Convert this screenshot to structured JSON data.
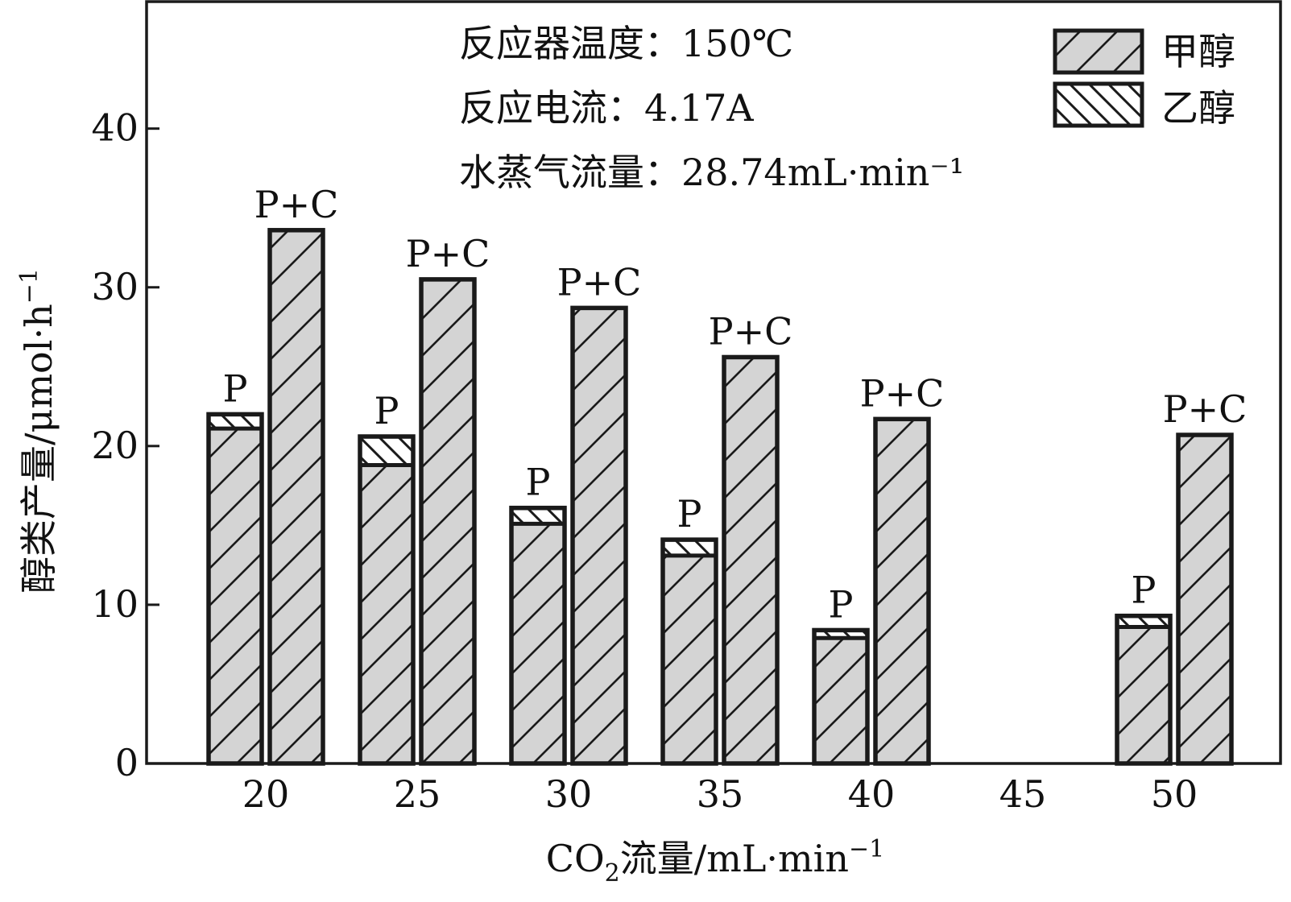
{
  "chart_data": {
    "type": "bar",
    "stacked": true,
    "xlabel": "CO₂流量/mL·min⁻¹",
    "xlabel_parts": {
      "pre": "CO",
      "sub": "2",
      "mid": "流量/mL·min",
      "sup": "−1"
    },
    "ylabel": "醇类产量/μmol·h⁻¹",
    "ylabel_parts": {
      "main": "醇类产量/μmol·h",
      "sup": "−1"
    },
    "ylim": [
      0,
      48
    ],
    "yticks": [
      0,
      10,
      20,
      30,
      40
    ],
    "categories": [
      "20",
      "25",
      "30",
      "35",
      "40",
      "45",
      "50"
    ],
    "legend": {
      "position": "top-right",
      "entries": [
        {
          "name": "甲醇",
          "pattern": "forward-hatch"
        },
        {
          "name": "乙醇",
          "pattern": "back-hatch"
        }
      ]
    },
    "annotations": [
      "反应器温度：150℃",
      "反应电流：4.17A",
      "水蒸气流量：28.74mL·min⁻¹"
    ],
    "groups": [
      {
        "category": "20",
        "bars": [
          {
            "label": "P",
            "methanol": 21.1,
            "ethanol": 0.9
          },
          {
            "label": "P+C",
            "methanol": 33.6,
            "ethanol": 0
          }
        ]
      },
      {
        "category": "25",
        "bars": [
          {
            "label": "P",
            "methanol": 18.8,
            "ethanol": 1.8
          },
          {
            "label": "P+C",
            "methanol": 30.5,
            "ethanol": 0
          }
        ]
      },
      {
        "category": "30",
        "bars": [
          {
            "label": "P",
            "methanol": 15.1,
            "ethanol": 1.0
          },
          {
            "label": "P+C",
            "methanol": 28.7,
            "ethanol": 0
          }
        ]
      },
      {
        "category": "35",
        "bars": [
          {
            "label": "P",
            "methanol": 13.1,
            "ethanol": 1.0
          },
          {
            "label": "P+C",
            "methanol": 25.6,
            "ethanol": 0
          }
        ]
      },
      {
        "category": "40",
        "bars": [
          {
            "label": "P",
            "methanol": 7.9,
            "ethanol": 0.5
          },
          {
            "label": "P+C",
            "methanol": 21.7,
            "ethanol": 0
          }
        ]
      },
      {
        "category": "45",
        "bars": []
      },
      {
        "category": "50",
        "bars": [
          {
            "label": "P",
            "methanol": 8.6,
            "ethanol": 0.7
          },
          {
            "label": "P+C",
            "methanol": 20.7,
            "ethanol": 0
          }
        ]
      }
    ],
    "colors": {
      "bar_fill": "#d4d4d4",
      "stroke": "#1a1a1a"
    }
  }
}
